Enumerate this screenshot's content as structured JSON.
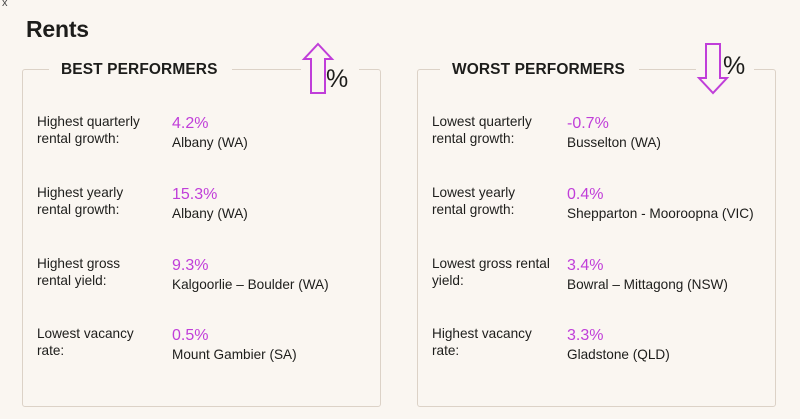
{
  "corner_mark": "x",
  "title": "Rents",
  "colors": {
    "accent": "#c03ed9",
    "background": "#faf6f1",
    "border": "#dcd2c7",
    "text": "#1d1d1b"
  },
  "best": {
    "heading": "BEST PERFORMERS",
    "icon": "arrow-up-percent-icon",
    "percent_symbol": "%",
    "rows": [
      {
        "label": "Highest quarterly rental growth:",
        "value": "4.2%",
        "place": "Albany (WA)"
      },
      {
        "label": "Highest yearly rental growth:",
        "value": "15.3%",
        "place": "Albany (WA)"
      },
      {
        "label": "Highest gross rental yield:",
        "value": "9.3%",
        "place": "Kalgoorlie – Boulder (WA)"
      },
      {
        "label": "Lowest vacancy rate:",
        "value": "0.5%",
        "place": "Mount Gambier (SA)"
      }
    ]
  },
  "worst": {
    "heading": "WORST PERFORMERS",
    "icon": "arrow-down-percent-icon",
    "percent_symbol": "%",
    "rows": [
      {
        "label": "Lowest quarterly rental growth:",
        "value": "-0.7%",
        "place": "Busselton (WA)"
      },
      {
        "label": "Lowest yearly rental growth:",
        "value": "0.4%",
        "place": "Shepparton - Mooroopna (VIC)"
      },
      {
        "label": "Lowest gross rental yield:",
        "value": "3.4%",
        "place": "Bowral – Mittagong (NSW)"
      },
      {
        "label": "Highest vacancy rate:",
        "value": "3.3%",
        "place": "Gladstone (QLD)"
      }
    ]
  }
}
